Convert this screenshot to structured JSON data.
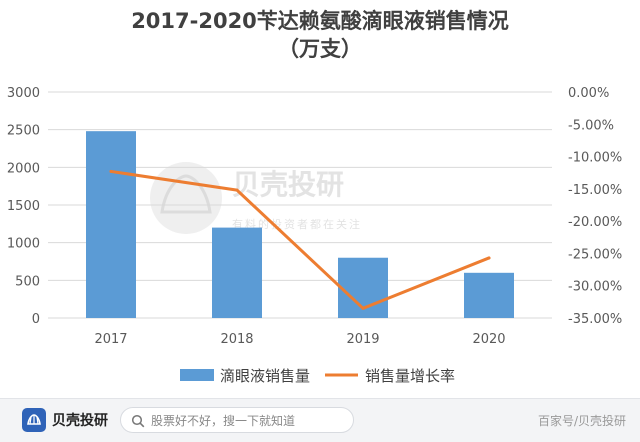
{
  "chart": {
    "title_line1": "2017-2020苄达赖氨酸滴眼液销售情况",
    "title_line2": "（万支）"
  },
  "chart_data": {
    "type": "bar",
    "title": "2017-2020苄达赖氨酸滴眼液销售情况（万支）",
    "categories": [
      "2017",
      "2018",
      "2019",
      "2020"
    ],
    "series": [
      {
        "name": "滴眼液销售量",
        "type": "bar",
        "axis": "left",
        "values": [
          2480,
          1200,
          800,
          600
        ],
        "color": "#5b9bd5"
      },
      {
        "name": "销售量增长率",
        "type": "line",
        "axis": "right",
        "values": [
          -12.3,
          -15.2,
          -33.5,
          -25.7
        ],
        "color": "#ed7d31"
      }
    ],
    "y_left": {
      "min": 0,
      "max": 3000,
      "step": 500,
      "ticks": [
        "0",
        "500",
        "1000",
        "1500",
        "2000",
        "2500",
        "3000"
      ]
    },
    "y_right": {
      "min": -35,
      "max": 0,
      "step": 5,
      "ticks": [
        "-35.00%",
        "-30.00%",
        "-25.00%",
        "-20.00%",
        "-15.00%",
        "-10.00%",
        "-5.00%",
        "0.00%"
      ]
    },
    "grid": true,
    "legend_position": "bottom"
  },
  "watermark": {
    "name": "贝壳投研",
    "slogan": "有料的投资者都在关注"
  },
  "bottom_bar": {
    "brand": "贝壳投研",
    "search_placeholder": "股票好不好，搜一下就知道",
    "source": "百家号/贝壳投研"
  },
  "colors": {
    "bar": "#5b9bd5",
    "line": "#ed7d31",
    "title": "#404040",
    "axis_text": "#595959",
    "grid": "#d9d9d9",
    "brand_blue": "#2f63b8"
  }
}
